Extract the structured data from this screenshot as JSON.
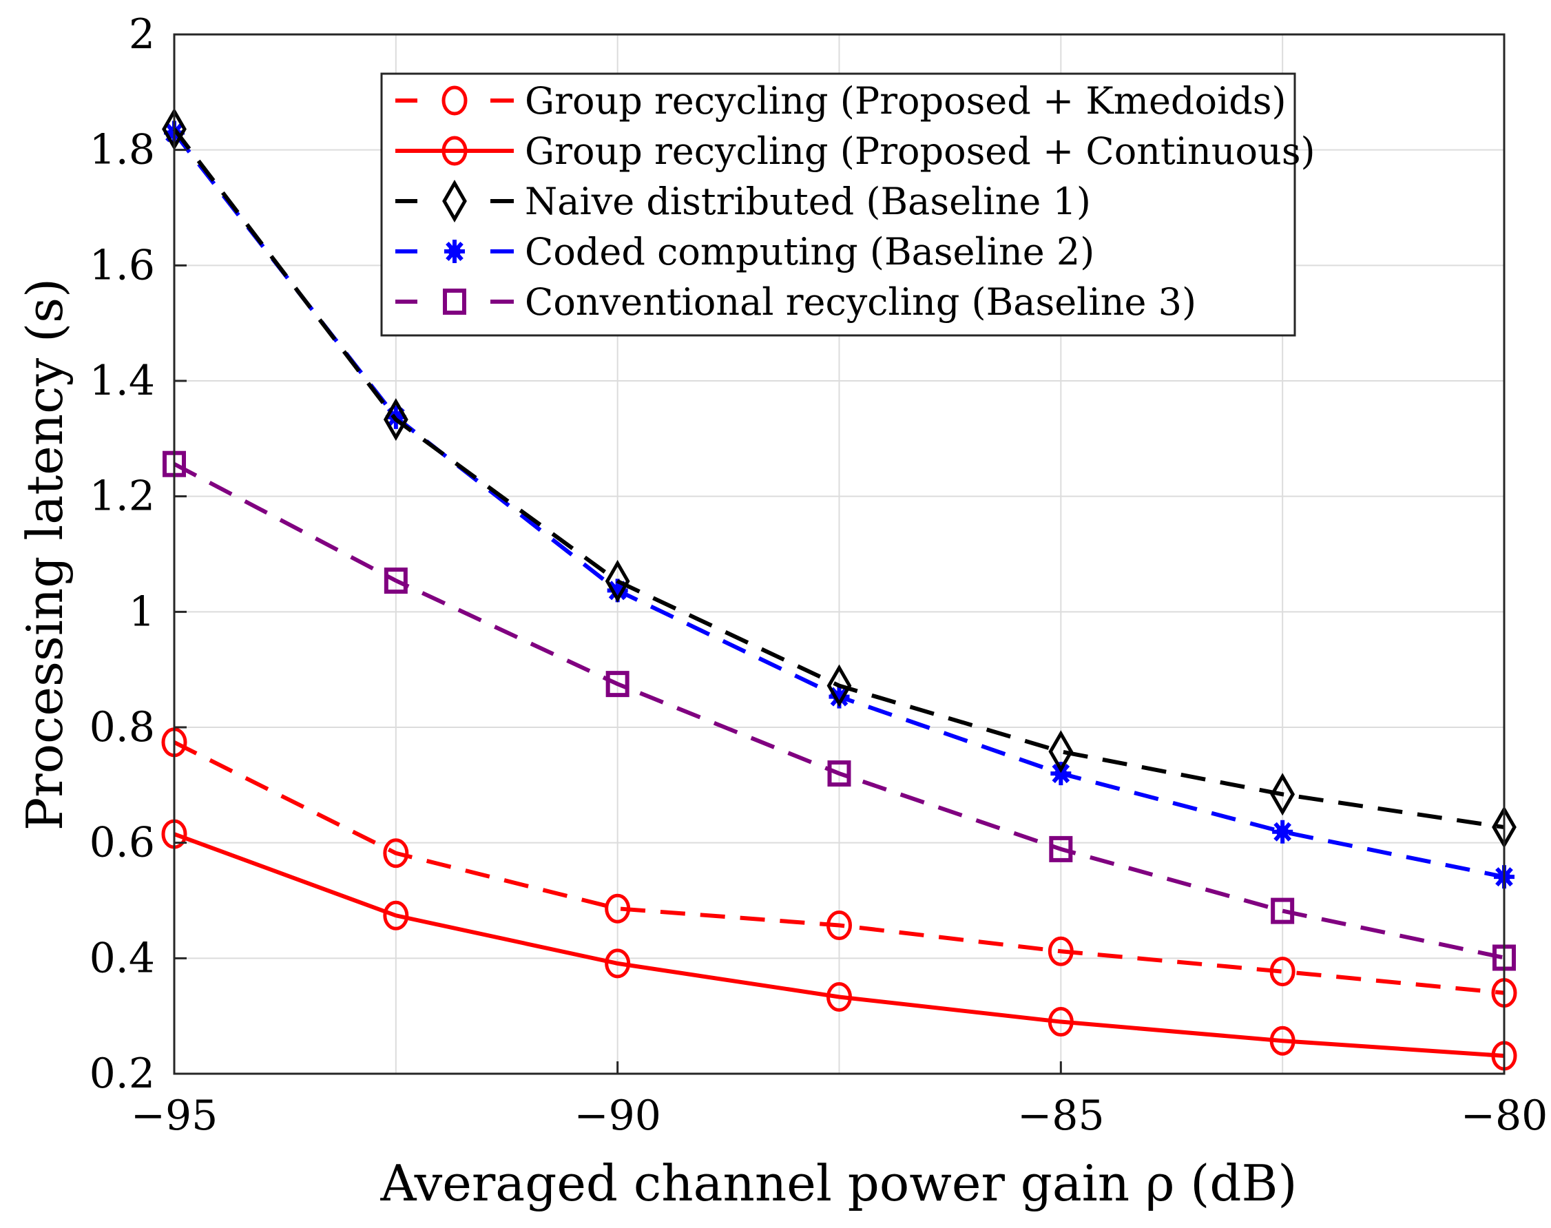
{
  "chart_data": {
    "type": "line",
    "title": "",
    "xlabel": "Averaged channel power gain ρ (dB)",
    "ylabel": "Processing latency (s)",
    "xlim": [
      -95,
      -80
    ],
    "ylim": [
      0.2,
      2
    ],
    "xticks": [
      -95,
      -90,
      -85,
      -80
    ],
    "xtick_labels": [
      "−95",
      "−90",
      "−85",
      "−80"
    ],
    "yticks": [
      0.2,
      0.4,
      0.6,
      0.8,
      1,
      1.2,
      1.4,
      1.6,
      1.8,
      2
    ],
    "ytick_labels": [
      "0.2",
      "0.4",
      "0.6",
      "0.8",
      "1",
      "1.2",
      "1.4",
      "1.6",
      "1.8",
      "2"
    ],
    "grid": true,
    "legend_position": "top-center",
    "x": [
      -95,
      -92.5,
      -90,
      -87.5,
      -85,
      -82.5,
      -80
    ],
    "series": [
      {
        "name": "Group recycling (Proposed + Kmedoids)",
        "color": "#ff0000",
        "dash": "dashed",
        "marker": "circle",
        "values": [
          0.774,
          0.582,
          0.486,
          0.457,
          0.412,
          0.377,
          0.34
        ]
      },
      {
        "name": "Group recycling (Proposed + Continuous)",
        "color": "#ff0000",
        "dash": "solid",
        "marker": "circle",
        "values": [
          0.615,
          0.474,
          0.391,
          0.333,
          0.29,
          0.257,
          0.231
        ]
      },
      {
        "name": "Naive distributed (Baseline 1)",
        "color": "#000000",
        "dash": "dashed",
        "marker": "diamond",
        "values": [
          1.836,
          1.333,
          1.053,
          0.872,
          0.758,
          0.684,
          0.627
        ]
      },
      {
        "name": "Coded computing (Baseline 2)",
        "color": "#0000ff",
        "dash": "dashed",
        "marker": "asterisk",
        "values": [
          1.83,
          1.337,
          1.037,
          0.853,
          0.72,
          0.619,
          0.541
        ]
      },
      {
        "name": "Conventional recycling (Baseline 3)",
        "color": "#800080",
        "dash": "dashed",
        "marker": "square",
        "values": [
          1.256,
          1.054,
          0.875,
          0.72,
          0.589,
          0.482,
          0.401
        ]
      }
    ]
  }
}
